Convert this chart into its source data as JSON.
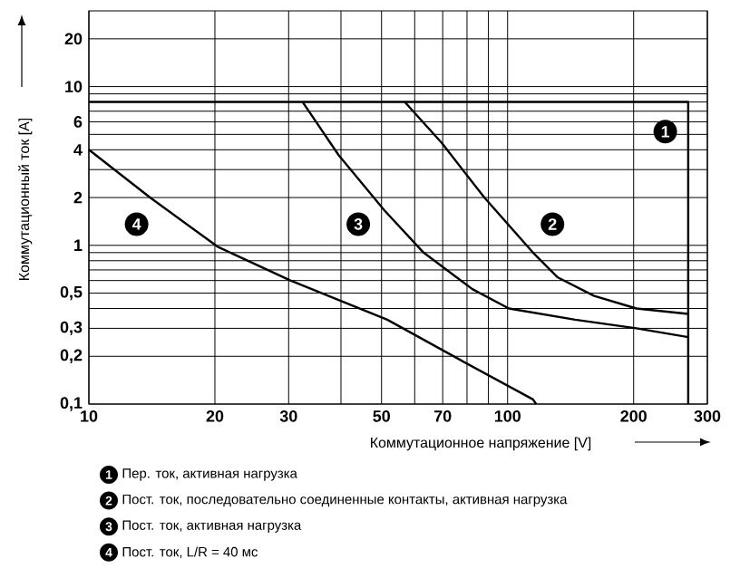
{
  "chart_data": {
    "type": "line",
    "xlabel": "Коммутационное напряжение [V]",
    "ylabel": "Коммутационный ток [А]",
    "log": "xy",
    "grid": true,
    "legend": "bottom",
    "marker": "none",
    "line_style": "solid",
    "xlim": [
      10,
      300
    ],
    "ylim": [
      0.1,
      30
    ],
    "xticks": [
      10,
      20,
      30,
      {
        "value": 40,
        "label": null
      },
      50,
      {
        "value": 60,
        "label": null
      },
      70,
      {
        "value": 80,
        "label": null
      },
      {
        "value": 90,
        "label": null
      },
      100,
      200,
      300
    ],
    "yticks": [
      {
        "value": 0.1,
        "label": "0,1"
      },
      {
        "value": 0.2,
        "label": "0,2"
      },
      {
        "value": 0.3,
        "label": "0,3"
      },
      {
        "value": 0.4,
        "label": null
      },
      {
        "value": 0.5,
        "label": "0,5"
      },
      {
        "value": 0.6,
        "label": null
      },
      {
        "value": 0.7,
        "label": null
      },
      {
        "value": 0.8,
        "label": null
      },
      {
        "value": 0.9,
        "label": null
      },
      1,
      2,
      {
        "value": 3,
        "label": null
      },
      4,
      {
        "value": 5,
        "label": null
      },
      6,
      {
        "value": 7,
        "label": null
      },
      {
        "value": 8,
        "label": null
      },
      {
        "value": 9,
        "label": null
      },
      10,
      20
    ],
    "series": [
      {
        "name": "Пер. ток, активная нагрузка",
        "color": "#000000",
        "x": [
          10,
          270,
          270
        ],
        "values": [
          8,
          8,
          0.1
        ]
      },
      {
        "name": "Пост. ток, последовательно соединенные контакты, активная нагрузка",
        "color": "#000000",
        "x": [
          56.8,
          69.7,
          88,
          115,
          131.5,
          161,
          203,
          270
        ],
        "values": [
          8,
          4.4,
          2,
          0.9,
          0.63,
          0.48,
          0.4,
          0.37
        ]
      },
      {
        "name": "Пост. ток, активная нагрузка",
        "color": "#000000",
        "x": [
          32.4,
          39.5,
          50.8,
          63,
          82.4,
          100.7,
          145,
          203,
          270
        ],
        "values": [
          8,
          3.7,
          1.66,
          0.9,
          0.53,
          0.4,
          0.34,
          0.3,
          0.264
        ]
      },
      {
        "name": "Пост. ток, L/R = 40 мс",
        "color": "#000000",
        "x": [
          10,
          14,
          20.3,
          30.3,
          51.6,
          77,
          115,
          117
        ],
        "values": [
          4,
          2,
          0.98,
          0.6,
          0.34,
          0.19,
          0.107,
          0.1
        ]
      }
    ],
    "annotations": [
      {
        "text": "1",
        "x": 238,
        "y": 5.2
      },
      {
        "text": "2",
        "x": 128,
        "y": 1.36
      },
      {
        "text": "3",
        "x": 44,
        "y": 1.36
      },
      {
        "text": "4",
        "x": 13,
        "y": 1.36
      }
    ]
  }
}
